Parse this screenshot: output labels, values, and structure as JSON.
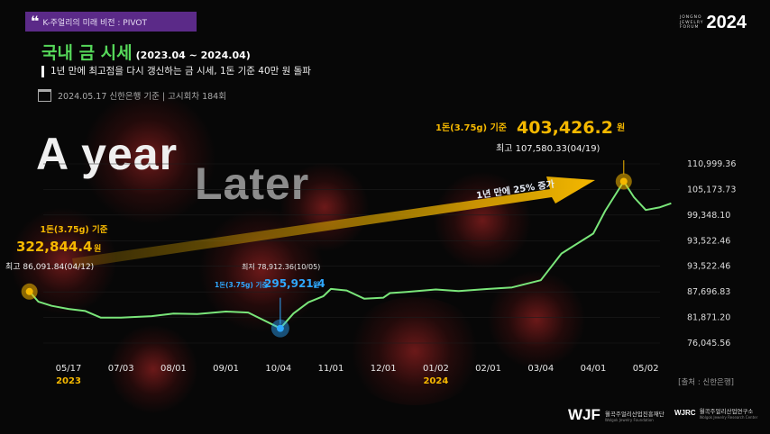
{
  "header": {
    "tag": "K-주얼리의 미래 비전 : PIVOT",
    "forum_small": [
      "JONGNO",
      "JEWELRY",
      "FORUM"
    ],
    "forum_year": "2024",
    "title": "국내 금 시세",
    "title_range": "(2023.04 ~ 2024.04)",
    "subtitle": "1년 만에 최고점을 다시 갱신하는 금 시세, 1돈 기준 40만 원 돌파",
    "date_line": "2024.05.17 신한은행 기준 | 고시회차 184회"
  },
  "hero": {
    "line1": "A year",
    "line2": "Later"
  },
  "colors": {
    "line": "#7ae67a",
    "gold": "#f5b800",
    "blue": "#2fa8ff",
    "purple": "#5b2a88",
    "title_green": "#56d85a"
  },
  "annotations": {
    "start": {
      "unit": "1돈(3.75g) 기준",
      "price": "322,844.4",
      "won": "원",
      "peak": "최고 86,091.84(04/12)"
    },
    "low": {
      "label": "최저 78,912.36(10/05)",
      "unit": "1돈(3.75g) 기준",
      "price": "295,921.4",
      "won": "원"
    },
    "end": {
      "unit": "1돈(3.75g) 기준",
      "price": "403,426.2",
      "won": "원",
      "peak": "최고 107,580.33(04/19)"
    },
    "arrow": "1년 만에 25% 증가"
  },
  "source": "[출처 : 신한은행]",
  "logos": {
    "wjf_mark": "WJF",
    "wjf_name": "월곡주얼리산업진흥재단",
    "wjf_sub": "Wolgok Jewelry Foundation",
    "wjrc_mark": "WJRC",
    "wjrc_name": "월곡주얼리산업연구소",
    "wjrc_sub": "Wolgok Jewelry Research Center"
  },
  "chart_data": {
    "type": "line",
    "title": "",
    "xlabel": "",
    "ylabel": "",
    "x_ticks": [
      "05/17",
      "07/03",
      "08/01",
      "09/01",
      "10/04",
      "11/01",
      "12/01",
      "01/02",
      "02/01",
      "03/04",
      "04/01",
      "05/02"
    ],
    "year_labels": [
      "2023",
      "2024"
    ],
    "y_ticks": [
      "110,999.36",
      "105,173.73",
      "99,348.10",
      "93,522.46",
      "93,522.46",
      "87,696.83",
      "81,871.20",
      "76,045.56"
    ],
    "ylim": [
      76045.56,
      110999.36
    ],
    "series": [
      {
        "x": [
          "04/12",
          "04/20",
          "05/02",
          "05/17",
          "06/01",
          "06/15",
          "07/03",
          "07/20",
          "08/01",
          "08/15",
          "09/01",
          "09/15",
          "10/05",
          "10/12",
          "10/20",
          "10/28",
          "11/01",
          "11/10",
          "11/20",
          "12/01",
          "12/05",
          "12/15",
          "01/02",
          "01/15",
          "02/01",
          "02/15",
          "03/04",
          "03/15",
          "04/01",
          "04/08",
          "04/19",
          "04/25",
          "05/02",
          "05/10",
          "05/17"
        ],
        "values": [
          86091.84,
          84100,
          83300,
          82700,
          82300,
          81000,
          81000,
          81300,
          81800,
          81700,
          82200,
          82000,
          78912.36,
          81800,
          84000,
          85200,
          86600,
          86300,
          84700,
          84900,
          85800,
          86000,
          86500,
          86200,
          86600,
          86900,
          88300,
          93500,
          97400,
          101800,
          107580.33,
          104500,
          102000,
          102500,
          103300
        ]
      }
    ]
  }
}
